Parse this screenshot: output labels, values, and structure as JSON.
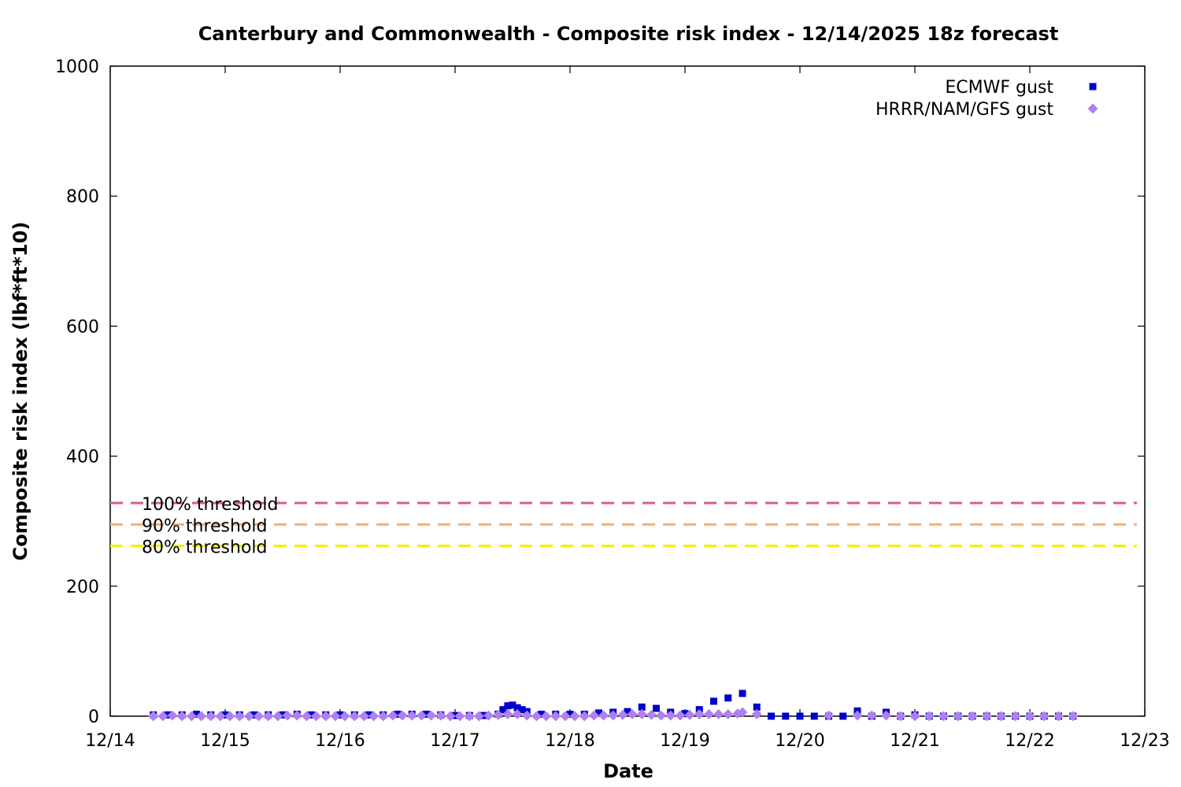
{
  "chart_data": {
    "type": "scatter",
    "title": "Canterbury and Commonwealth - Composite risk index - 12/14/2025 18z forecast",
    "xlabel": "Date",
    "ylabel": "Composite risk index (lbf*ft*10)",
    "xlim": [
      "12/14",
      "12/23"
    ],
    "ylim": [
      0,
      1000
    ],
    "x_ticks": [
      "12/14",
      "12/15",
      "12/16",
      "12/17",
      "12/18",
      "12/19",
      "12/20",
      "12/21",
      "12/22",
      "12/23"
    ],
    "y_ticks": [
      0,
      200,
      400,
      600,
      800,
      1000
    ],
    "grid": false,
    "legend_position": "top-right",
    "thresholds": [
      {
        "label": "100% threshold",
        "value": 328,
        "color": "#d9607a"
      },
      {
        "label": "90% threshold",
        "value": 295,
        "color": "#f5b07a"
      },
      {
        "label": "80% threshold",
        "value": 262,
        "color": "#f0f000"
      }
    ],
    "series": [
      {
        "name": "ECMWF gust",
        "marker": "square",
        "color": "#0000cc",
        "points": [
          [
            "12/14 09z",
            2
          ],
          [
            "12/14 12z",
            2
          ],
          [
            "12/14 15z",
            2
          ],
          [
            "12/14 18z",
            3
          ],
          [
            "12/14 21z",
            2
          ],
          [
            "12/15 00z",
            2
          ],
          [
            "12/15 03z",
            2
          ],
          [
            "12/15 06z",
            2
          ],
          [
            "12/15 09z",
            2
          ],
          [
            "12/15 12z",
            2
          ],
          [
            "12/15 15z",
            3
          ],
          [
            "12/15 18z",
            2
          ],
          [
            "12/15 21z",
            2
          ],
          [
            "12/16 00z",
            2
          ],
          [
            "12/16 03z",
            2
          ],
          [
            "12/16 06z",
            2
          ],
          [
            "12/16 09z",
            2
          ],
          [
            "12/16 12z",
            3
          ],
          [
            "12/16 15z",
            3
          ],
          [
            "12/16 18z",
            3
          ],
          [
            "12/16 21z",
            2
          ],
          [
            "12/17 00z",
            1
          ],
          [
            "12/17 03z",
            1
          ],
          [
            "12/17 06z",
            1
          ],
          [
            "12/17 09z",
            3
          ],
          [
            "12/17 10z",
            10
          ],
          [
            "12/17 11z",
            16
          ],
          [
            "12/17 12z",
            17
          ],
          [
            "12/17 13z",
            13
          ],
          [
            "12/17 14z",
            10
          ],
          [
            "12/17 15z",
            7
          ],
          [
            "12/17 18z",
            3
          ],
          [
            "12/17 21z",
            3
          ],
          [
            "12/18 00z",
            3
          ],
          [
            "12/18 03z",
            3
          ],
          [
            "12/18 06z",
            5
          ],
          [
            "12/18 09z",
            6
          ],
          [
            "12/18 12z",
            7
          ],
          [
            "12/18 15z",
            14
          ],
          [
            "12/18 18z",
            12
          ],
          [
            "12/18 21z",
            6
          ],
          [
            "12/19 00z",
            4
          ],
          [
            "12/19 03z",
            10
          ],
          [
            "12/19 06z",
            23
          ],
          [
            "12/19 09z",
            28
          ],
          [
            "12/19 12z",
            35
          ],
          [
            "12/19 15z",
            14
          ],
          [
            "12/19 18z",
            0
          ],
          [
            "12/19 21z",
            0
          ],
          [
            "12/20 00z",
            0
          ],
          [
            "12/20 03z",
            0
          ],
          [
            "12/20 06z",
            0
          ],
          [
            "12/20 09z",
            0
          ],
          [
            "12/20 12z",
            8
          ],
          [
            "12/20 15z",
            0
          ],
          [
            "12/20 18z",
            6
          ],
          [
            "12/20 21z",
            0
          ],
          [
            "12/21 00z",
            2
          ],
          [
            "12/21 03z",
            0
          ],
          [
            "12/21 06z",
            0
          ],
          [
            "12/21 09z",
            0
          ],
          [
            "12/21 12z",
            0
          ],
          [
            "12/21 15z",
            0
          ],
          [
            "12/21 18z",
            0
          ],
          [
            "12/21 21z",
            0
          ],
          [
            "12/22 00z",
            0
          ],
          [
            "12/22 03z",
            0
          ],
          [
            "12/22 06z",
            0
          ],
          [
            "12/22 09z",
            0
          ]
        ]
      },
      {
        "name": "HRRR/NAM/GFS gust",
        "marker": "diamond",
        "color": "#b080f0",
        "points": [
          [
            "12/14 09z",
            0
          ],
          [
            "12/14 11z",
            0
          ],
          [
            "12/14 13z",
            1
          ],
          [
            "12/14 15z",
            0
          ],
          [
            "12/14 17z",
            0
          ],
          [
            "12/14 19z",
            0
          ],
          [
            "12/14 21z",
            0
          ],
          [
            "12/14 23z",
            0
          ],
          [
            "12/15 01z",
            0
          ],
          [
            "12/15 03z",
            0
          ],
          [
            "12/15 05z",
            0
          ],
          [
            "12/15 07z",
            0
          ],
          [
            "12/15 09z",
            0
          ],
          [
            "12/15 11z",
            0
          ],
          [
            "12/15 13z",
            1
          ],
          [
            "12/15 15z",
            1
          ],
          [
            "12/15 17z",
            0
          ],
          [
            "12/15 19z",
            0
          ],
          [
            "12/15 21z",
            0
          ],
          [
            "12/15 23z",
            0
          ],
          [
            "12/16 01z",
            0
          ],
          [
            "12/16 03z",
            0
          ],
          [
            "12/16 05z",
            0
          ],
          [
            "12/16 07z",
            0
          ],
          [
            "12/16 09z",
            0
          ],
          [
            "12/16 11z",
            1
          ],
          [
            "12/16 13z",
            1
          ],
          [
            "12/16 15z",
            1
          ],
          [
            "12/16 17z",
            1
          ],
          [
            "12/16 19z",
            1
          ],
          [
            "12/16 21z",
            1
          ],
          [
            "12/16 23z",
            0
          ],
          [
            "12/17 01z",
            0
          ],
          [
            "12/17 03z",
            0
          ],
          [
            "12/17 05z",
            0
          ],
          [
            "12/17 07z",
            1
          ],
          [
            "12/17 09z",
            2
          ],
          [
            "12/17 11z",
            3
          ],
          [
            "12/17 13z",
            3
          ],
          [
            "12/17 15z",
            1
          ],
          [
            "12/17 17z",
            0
          ],
          [
            "12/17 19z",
            0
          ],
          [
            "12/17 21z",
            0
          ],
          [
            "12/17 23z",
            0
          ],
          [
            "12/18 01z",
            0
          ],
          [
            "12/18 03z",
            0
          ],
          [
            "12/18 05z",
            1
          ],
          [
            "12/18 07z",
            1
          ],
          [
            "12/18 09z",
            1
          ],
          [
            "12/18 11z",
            2
          ],
          [
            "12/18 13z",
            3
          ],
          [
            "12/18 15z",
            3
          ],
          [
            "12/18 17z",
            2
          ],
          [
            "12/18 19z",
            1
          ],
          [
            "12/18 21z",
            1
          ],
          [
            "12/18 23z",
            1
          ],
          [
            "12/19 01z",
            2
          ],
          [
            "12/19 03z",
            3
          ],
          [
            "12/19 05z",
            3
          ],
          [
            "12/19 07z",
            3
          ],
          [
            "12/19 09z",
            3
          ],
          [
            "12/19 11z",
            4
          ],
          [
            "12/19 12z",
            6
          ],
          [
            "12/19 15z",
            3
          ],
          [
            "12/20 06z",
            1
          ],
          [
            "12/20 12z",
            1
          ],
          [
            "12/20 15z",
            1
          ],
          [
            "12/20 18z",
            1
          ],
          [
            "12/20 21z",
            0
          ],
          [
            "12/21 00z",
            0
          ],
          [
            "12/21 03z",
            0
          ],
          [
            "12/21 06z",
            0
          ],
          [
            "12/21 09z",
            0
          ],
          [
            "12/21 12z",
            0
          ],
          [
            "12/21 15z",
            0
          ],
          [
            "12/21 18z",
            0
          ],
          [
            "12/21 21z",
            0
          ],
          [
            "12/22 00z",
            0
          ],
          [
            "12/22 03z",
            0
          ],
          [
            "12/22 06z",
            0
          ],
          [
            "12/22 09z",
            0
          ]
        ]
      }
    ]
  }
}
